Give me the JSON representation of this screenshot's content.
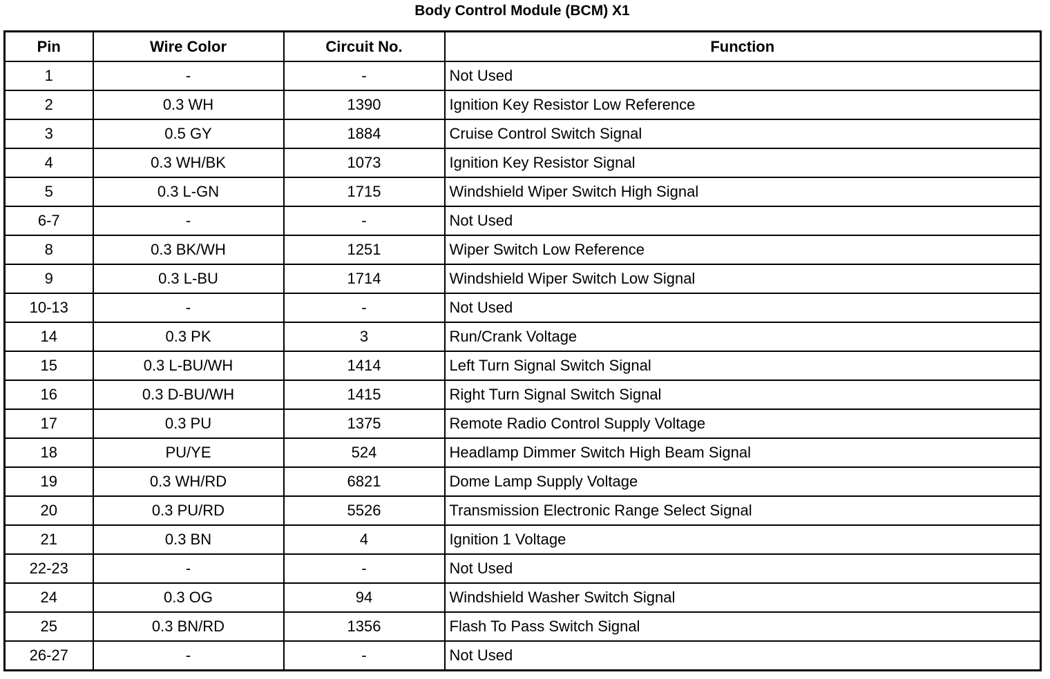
{
  "title": "Body Control Module (BCM) X1",
  "headers": [
    "Pin",
    "Wire Color",
    "Circuit No.",
    "Function"
  ],
  "rows": [
    [
      "1",
      "-",
      "-",
      "Not Used"
    ],
    [
      "2",
      "0.3 WH",
      "1390",
      "Ignition Key Resistor Low Reference"
    ],
    [
      "3",
      "0.5 GY",
      "1884",
      "Cruise Control Switch Signal"
    ],
    [
      "4",
      "0.3 WH/BK",
      "1073",
      "Ignition Key Resistor Signal"
    ],
    [
      "5",
      "0.3 L-GN",
      "1715",
      "Windshield Wiper Switch High Signal"
    ],
    [
      "6-7",
      "-",
      "-",
      "Not Used"
    ],
    [
      "8",
      "0.3 BK/WH",
      "1251",
      "Wiper Switch Low Reference"
    ],
    [
      "9",
      "0.3 L-BU",
      "1714",
      "Windshield Wiper Switch Low Signal"
    ],
    [
      "10-13",
      "-",
      "-",
      "Not Used"
    ],
    [
      "14",
      "0.3 PK",
      "3",
      "Run/Crank Voltage"
    ],
    [
      "15",
      "0.3 L-BU/WH",
      "1414",
      "Left Turn Signal Switch Signal"
    ],
    [
      "16",
      "0.3 D-BU/WH",
      "1415",
      "Right Turn Signal Switch Signal"
    ],
    [
      "17",
      "0.3 PU",
      "1375",
      "Remote Radio Control Supply Voltage"
    ],
    [
      "18",
      "PU/YE",
      "524",
      "Headlamp Dimmer Switch High Beam Signal"
    ],
    [
      "19",
      "0.3 WH/RD",
      "6821",
      "Dome Lamp Supply Voltage"
    ],
    [
      "20",
      "0.3 PU/RD",
      "5526",
      "Transmission Electronic Range Select Signal"
    ],
    [
      "21",
      "0.3 BN",
      "4",
      "Ignition 1 Voltage"
    ],
    [
      "22-23",
      "-",
      "-",
      "Not Used"
    ],
    [
      "24",
      "0.3 OG",
      "94",
      "Windshield Washer Switch Signal"
    ],
    [
      "25",
      "0.3 BN/RD",
      "1356",
      "Flash To Pass Switch Signal"
    ],
    [
      "26-27",
      "-",
      "-",
      "Not Used"
    ]
  ]
}
